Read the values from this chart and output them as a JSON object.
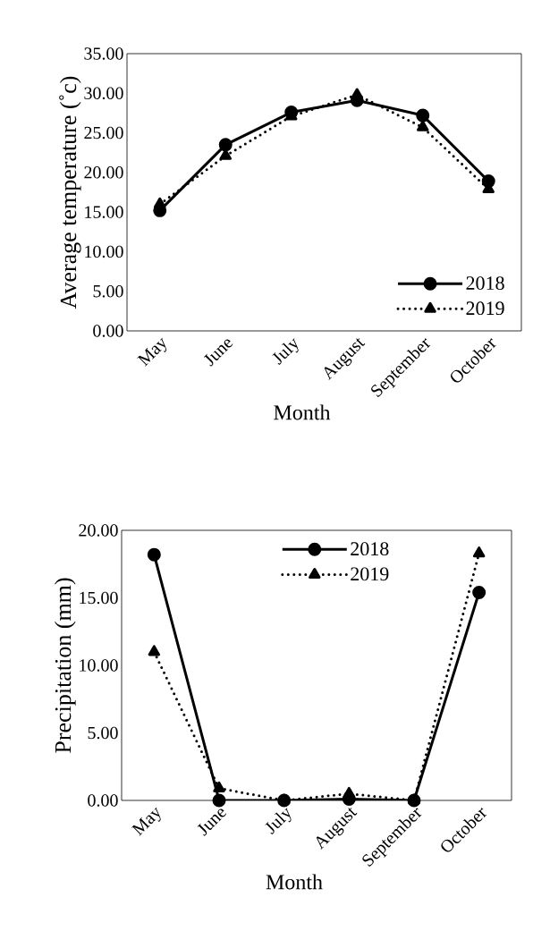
{
  "chart_data": [
    {
      "type": "line",
      "xlabel": "Month",
      "ylabel": "Average temperature (˚c)",
      "categories": [
        "May",
        "June",
        "July",
        "August",
        "September",
        "October"
      ],
      "series": [
        {
          "name": "2018",
          "color": "#000000",
          "marker": "circle",
          "line_style": "solid",
          "values": [
            15.2,
            23.5,
            27.6,
            29.1,
            27.2,
            18.9
          ]
        },
        {
          "name": "2019",
          "color": "#000000",
          "marker": "triangle",
          "line_style": "dotted",
          "values": [
            16.0,
            22.1,
            27.1,
            29.8,
            25.7,
            17.9
          ]
        }
      ],
      "ylim": [
        0,
        35
      ],
      "yticks": [
        {
          "value": 0,
          "label": "0.00"
        },
        {
          "value": 5,
          "label": "5.00"
        },
        {
          "value": 10,
          "label": "10.00"
        },
        {
          "value": 15,
          "label": "15.00"
        },
        {
          "value": 20,
          "label": "20.00"
        },
        {
          "value": 25,
          "label": "25.00"
        },
        {
          "value": 30,
          "label": "30.00"
        },
        {
          "value": 35,
          "label": "35.00"
        }
      ],
      "grid": false,
      "legend": "bottom right"
    },
    {
      "type": "line",
      "xlabel": "Month",
      "ylabel": "Precipitation (mm)",
      "categories": [
        "May",
        "June",
        "July",
        "August",
        "September",
        "October"
      ],
      "series": [
        {
          "name": "2018",
          "color": "#000000",
          "marker": "circle",
          "line_style": "solid",
          "values": [
            18.2,
            0.0,
            0.0,
            0.1,
            0.0,
            15.4
          ]
        },
        {
          "name": "2019",
          "color": "#000000",
          "marker": "triangle",
          "line_style": "dotted",
          "values": [
            11.0,
            0.9,
            0.0,
            0.5,
            0.0,
            18.3
          ]
        }
      ],
      "ylim": [
        0,
        20
      ],
      "yticks": [
        {
          "value": 0,
          "label": "0.00"
        },
        {
          "value": 5,
          "label": "5.00"
        },
        {
          "value": 10,
          "label": "10.00"
        },
        {
          "value": 15,
          "label": "15.00"
        },
        {
          "value": 20,
          "label": "20.00"
        }
      ],
      "grid": false,
      "legend": "top"
    }
  ]
}
